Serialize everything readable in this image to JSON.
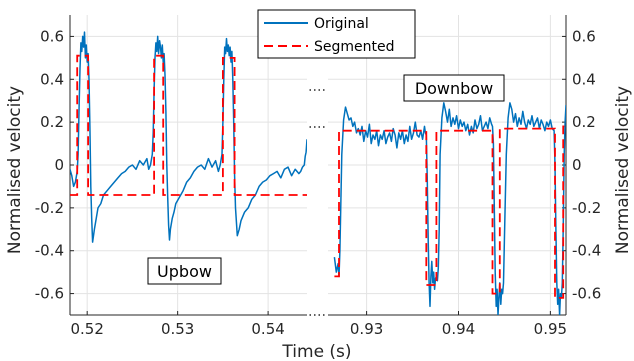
{
  "chart_data": {
    "type": "line",
    "title": "",
    "xlabel": "Time (s)",
    "ylabel_left": "Normalised velocity",
    "ylabel_right": "Normalised velocity",
    "ylim": [
      -0.7,
      0.7
    ],
    "yticks": [
      -0.6,
      -0.4,
      -0.2,
      0,
      0.2,
      0.4,
      0.6
    ],
    "ytick_labels": [
      "-0.6",
      "-0.4",
      "-0.2",
      "0",
      "0.2",
      "0.4",
      "0.6"
    ],
    "grid": true,
    "legend_position": "top-center",
    "series": [
      {
        "name": "Original",
        "color": "#0072BD",
        "style": "solid"
      },
      {
        "name": "Segmented",
        "color": "#FF0000",
        "style": "dashed"
      }
    ],
    "annotations": [
      "Upbow",
      "Downbow"
    ],
    "panels": [
      {
        "name": "upbow",
        "xlim": [
          0.5181,
          0.5443
        ],
        "xticks": [
          0.52,
          0.53,
          0.54
        ],
        "xtick_labels": [
          "0.52",
          "0.53",
          "0.54"
        ],
        "original": {
          "x": [
            0.5181,
            0.5183,
            0.5185,
            0.5187,
            0.5189,
            0.519,
            0.5191,
            0.5192,
            0.5193,
            0.5194,
            0.5195,
            0.5196,
            0.5197,
            0.5198,
            0.5199,
            0.52,
            0.5201,
            0.5202,
            0.5203,
            0.5204,
            0.5205,
            0.5206,
            0.5208,
            0.521,
            0.5212,
            0.5215,
            0.5218,
            0.5222,
            0.5226,
            0.523,
            0.5234,
            0.5238,
            0.5242,
            0.5246,
            0.525,
            0.5254,
            0.5258,
            0.5262,
            0.5266,
            0.5268,
            0.527,
            0.5272,
            0.5273,
            0.5274,
            0.5275,
            0.5276,
            0.5277,
            0.5278,
            0.5279,
            0.528,
            0.5281,
            0.5282,
            0.5283,
            0.5284,
            0.5285,
            0.5286,
            0.5287,
            0.5288,
            0.5289,
            0.529,
            0.5291,
            0.5292,
            0.5294,
            0.5296,
            0.5298,
            0.5302,
            0.5306,
            0.531,
            0.5314,
            0.5318,
            0.5322,
            0.5326,
            0.533,
            0.5334,
            0.5338,
            0.5342,
            0.5345,
            0.5347,
            0.5349,
            0.535,
            0.5351,
            0.5352,
            0.5353,
            0.5354,
            0.5355,
            0.5356,
            0.5357,
            0.5358,
            0.5359,
            0.536,
            0.5361,
            0.5362,
            0.5363,
            0.5364,
            0.5366,
            0.5368,
            0.537,
            0.5374,
            0.5378,
            0.5382,
            0.5386,
            0.539,
            0.5394,
            0.5398,
            0.5402,
            0.5406,
            0.541,
            0.5414,
            0.5418,
            0.5422,
            0.5426,
            0.543,
            0.5434,
            0.5436,
            0.5438,
            0.544,
            0.5441,
            0.5442,
            0.5443
          ],
          "y": [
            -0.02,
            -0.05,
            -0.1,
            -0.08,
            -0.03,
            0.05,
            0.25,
            0.45,
            0.57,
            0.53,
            0.6,
            0.55,
            0.62,
            0.5,
            0.56,
            0.48,
            0.52,
            0.4,
            0.18,
            -0.1,
            -0.25,
            -0.36,
            -0.3,
            -0.25,
            -0.2,
            -0.18,
            -0.14,
            -0.12,
            -0.1,
            -0.08,
            -0.06,
            -0.04,
            -0.03,
            -0.01,
            0.0,
            -0.02,
            0.02,
            0.0,
            0.03,
            -0.02,
            0.0,
            0.05,
            0.15,
            0.35,
            0.5,
            0.57,
            0.53,
            0.6,
            0.52,
            0.58,
            0.55,
            0.5,
            0.56,
            0.48,
            0.52,
            0.42,
            0.25,
            0.0,
            -0.15,
            -0.28,
            -0.35,
            -0.3,
            -0.25,
            -0.22,
            -0.18,
            -0.15,
            -0.12,
            -0.08,
            -0.06,
            -0.03,
            -0.01,
            0.0,
            -0.02,
            0.03,
            -0.01,
            0.02,
            -0.03,
            0.0,
            0.05,
            0.2,
            0.4,
            0.55,
            0.52,
            0.59,
            0.53,
            0.56,
            0.51,
            0.55,
            0.48,
            0.53,
            0.4,
            0.2,
            -0.05,
            -0.2,
            -0.33,
            -0.3,
            -0.26,
            -0.22,
            -0.2,
            -0.16,
            -0.14,
            -0.1,
            -0.08,
            -0.07,
            -0.05,
            -0.04,
            -0.03,
            -0.06,
            -0.02,
            -0.01,
            -0.05,
            -0.02,
            -0.04,
            -0.03,
            -0.01,
            0.0,
            0.04,
            0.06,
            0.12
          ]
        },
        "segmented": {
          "x": [
            0.5181,
            0.5189,
            0.5189,
            0.5201,
            0.5201,
            0.5274,
            0.5274,
            0.5284,
            0.5284,
            0.535,
            0.535,
            0.5363,
            0.5363,
            0.5443
          ],
          "y": [
            -0.14,
            -0.14,
            0.51,
            0.51,
            -0.14,
            -0.14,
            0.51,
            0.51,
            -0.14,
            -0.14,
            0.5,
            0.5,
            -0.14,
            -0.14
          ]
        }
      },
      {
        "name": "downbow",
        "xlim": [
          0.9258,
          0.9517
        ],
        "xticks": [
          0.93,
          0.94,
          0.95
        ],
        "xtick_labels": [
          "0.93",
          "0.94",
          "0.95"
        ],
        "original": {
          "x": [
            0.9265,
            0.9267,
            0.9269,
            0.927,
            0.9271,
            0.9273,
            0.9275,
            0.9277,
            0.9279,
            0.9281,
            0.9283,
            0.9285,
            0.9287,
            0.9289,
            0.9291,
            0.9293,
            0.9295,
            0.9297,
            0.9299,
            0.9301,
            0.9303,
            0.9305,
            0.9307,
            0.9309,
            0.9311,
            0.9313,
            0.9315,
            0.9317,
            0.9319,
            0.9321,
            0.9323,
            0.9325,
            0.9327,
            0.9329,
            0.9331,
            0.9333,
            0.9335,
            0.9337,
            0.9339,
            0.9341,
            0.9343,
            0.9345,
            0.9347,
            0.9349,
            0.9351,
            0.9353,
            0.9355,
            0.9357,
            0.9359,
            0.9361,
            0.9363,
            0.9364,
            0.9365,
            0.9366,
            0.9367,
            0.9368,
            0.9369,
            0.937,
            0.9371,
            0.9372,
            0.9373,
            0.9374,
            0.9375,
            0.9376,
            0.9377,
            0.9378,
            0.9379,
            0.938,
            0.9382,
            0.9384,
            0.9386,
            0.9388,
            0.939,
            0.9392,
            0.9394,
            0.9396,
            0.9398,
            0.94,
            0.9402,
            0.9404,
            0.9406,
            0.9408,
            0.941,
            0.9412,
            0.9414,
            0.9416,
            0.9418,
            0.942,
            0.9422,
            0.9424,
            0.9426,
            0.9428,
            0.943,
            0.9432,
            0.9434,
            0.9436,
            0.9437,
            0.9438,
            0.9439,
            0.944,
            0.9441,
            0.9442,
            0.9443,
            0.9444,
            0.9445,
            0.9446,
            0.9447,
            0.9448,
            0.9449,
            0.945,
            0.9452,
            0.9454,
            0.9456,
            0.9458,
            0.946,
            0.9462,
            0.9464,
            0.9466,
            0.9468,
            0.947,
            0.9472,
            0.9474,
            0.9476,
            0.9478,
            0.948,
            0.9482,
            0.9484,
            0.9486,
            0.9488,
            0.949,
            0.9492,
            0.9494,
            0.9496,
            0.9498,
            0.95,
            0.9502,
            0.9504,
            0.9505,
            0.9506,
            0.9507,
            0.9508,
            0.9509,
            0.951,
            0.9511,
            0.9512,
            0.9513,
            0.9514,
            0.9515,
            0.9516,
            0.9517
          ],
          "y": [
            -0.43,
            -0.5,
            -0.46,
            -0.52,
            -0.4,
            0.05,
            0.21,
            0.27,
            0.24,
            0.21,
            0.22,
            0.18,
            0.2,
            0.15,
            0.17,
            0.14,
            0.18,
            0.11,
            0.16,
            0.13,
            0.19,
            0.1,
            0.14,
            0.12,
            0.16,
            0.09,
            0.14,
            0.12,
            0.16,
            0.1,
            0.13,
            0.15,
            0.11,
            0.17,
            0.14,
            0.08,
            0.15,
            0.12,
            0.16,
            0.1,
            0.14,
            0.11,
            0.18,
            0.12,
            0.15,
            0.2,
            0.14,
            0.13,
            0.16,
            0.12,
            0.18,
            0.15,
            0.14,
            -0.05,
            -0.35,
            -0.55,
            -0.66,
            -0.52,
            -0.45,
            -0.55,
            -0.5,
            -0.58,
            -0.53,
            -0.52,
            -0.54,
            -0.48,
            -0.3,
            0.05,
            0.22,
            0.29,
            0.25,
            0.2,
            0.26,
            0.18,
            0.22,
            0.19,
            0.23,
            0.17,
            0.21,
            0.18,
            0.2,
            0.16,
            0.19,
            0.14,
            0.18,
            0.15,
            0.21,
            0.17,
            0.19,
            0.23,
            0.16,
            0.18,
            0.2,
            0.17,
            0.22,
            0.19,
            0.18,
            0.1,
            -0.2,
            -0.5,
            -0.66,
            -0.58,
            -0.7,
            -0.62,
            -0.55,
            -0.65,
            -0.58,
            -0.6,
            -0.55,
            -0.35,
            0.05,
            0.22,
            0.29,
            0.26,
            0.2,
            0.24,
            0.18,
            0.22,
            0.19,
            0.25,
            0.2,
            0.17,
            0.21,
            0.19,
            0.23,
            0.18,
            0.2,
            0.22,
            0.17,
            0.21,
            0.19,
            0.16,
            0.2,
            0.18,
            0.21,
            0.17,
            0.16,
            0.0,
            -0.3,
            -0.55,
            -0.65,
            -0.58,
            -0.7,
            -0.6,
            -0.62,
            -0.55,
            -0.3,
            0.05,
            0.2,
            0.28
          ]
        },
        "segmented": {
          "x": [
            0.9265,
            0.927,
            0.927,
            0.9365,
            0.9365,
            0.9376,
            0.9376,
            0.9437,
            0.9437,
            0.9445,
            0.9445,
            0.9505,
            0.9505,
            0.9514,
            0.9514,
            0.9517
          ],
          "y": [
            -0.52,
            -0.52,
            0.16,
            0.16,
            -0.56,
            -0.56,
            0.16,
            0.16,
            -0.6,
            -0.6,
            0.17,
            0.17,
            -0.62,
            -0.62,
            0.18,
            0.18
          ]
        }
      }
    ]
  }
}
